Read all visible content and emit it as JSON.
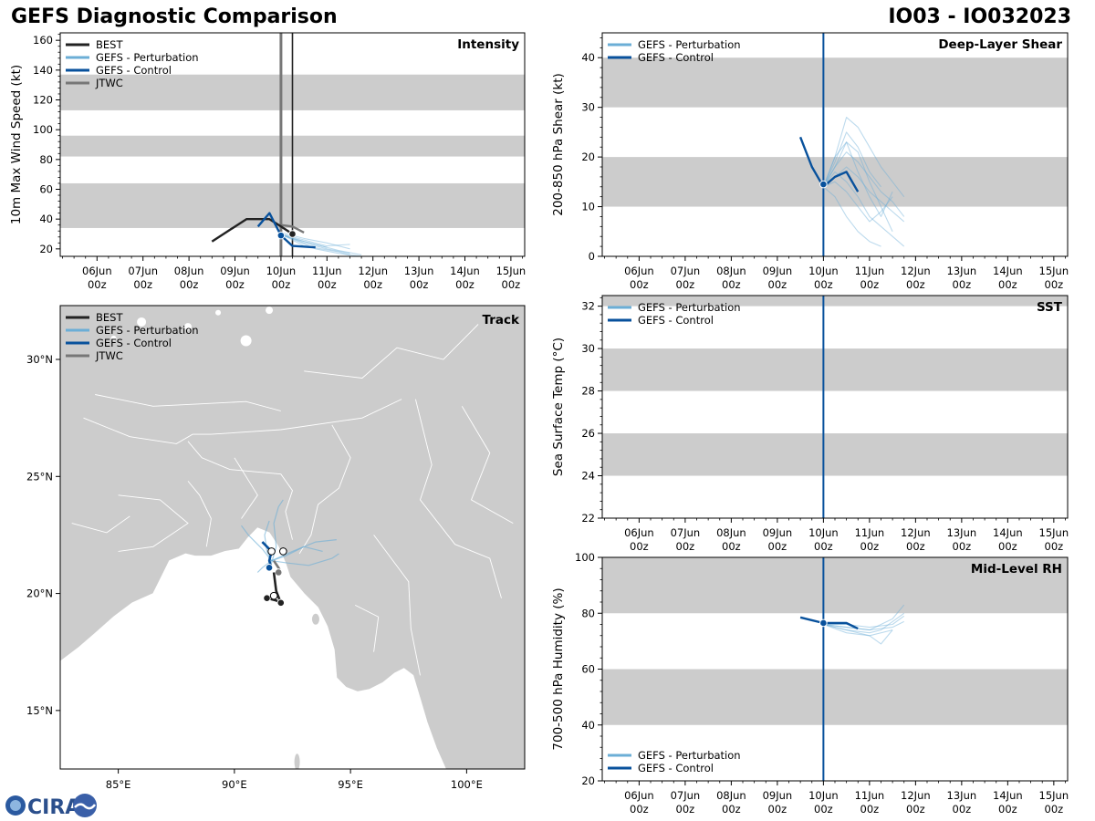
{
  "header": {
    "title": "GEFS Diagnostic Comparison",
    "storm_id": "IO03 - IO032023"
  },
  "logo": {
    "text": "CIRA"
  },
  "colors": {
    "best": "#222222",
    "perturbation": "#6baed6",
    "control": "#08519c",
    "jtwc": "#777777",
    "band": "#cccccc",
    "land": "#cccccc"
  },
  "time_ticks": [
    {
      "day": "06Jun",
      "hour": "00z"
    },
    {
      "day": "07Jun",
      "hour": "00z"
    },
    {
      "day": "08Jun",
      "hour": "00z"
    },
    {
      "day": "09Jun",
      "hour": "00z"
    },
    {
      "day": "10Jun",
      "hour": "00z"
    },
    {
      "day": "11Jun",
      "hour": "00z"
    },
    {
      "day": "12Jun",
      "hour": "00z"
    },
    {
      "day": "13Jun",
      "hour": "00z"
    },
    {
      "day": "14Jun",
      "hour": "00z"
    },
    {
      "day": "15Jun",
      "hour": "00z"
    }
  ],
  "chart_data": [
    {
      "id": "intensity",
      "type": "line",
      "title": "Intensity",
      "ylabel": "10m Max Wind Speed (kt)",
      "xlim_days": [
        5.2,
        15.3
      ],
      "ylim": [
        15,
        165
      ],
      "yticks": [
        20,
        40,
        60,
        80,
        100,
        120,
        140,
        160
      ],
      "bands": [
        [
          34,
          64
        ],
        [
          82,
          96
        ],
        [
          113,
          137
        ]
      ],
      "legend": [
        "BEST",
        "GEFS - Perturbation",
        "GEFS - Control",
        "JTWC"
      ],
      "vlines": [
        {
          "x": 10.0,
          "color": "#777777",
          "width": 3
        },
        {
          "x": 10.25,
          "color": "#222222",
          "width": 1.6
        }
      ],
      "series": [
        {
          "name": "BEST",
          "x": [
            8.5,
            9.25,
            9.75,
            10.0,
            10.25
          ],
          "y": [
            25,
            40,
            40,
            35,
            30
          ],
          "markers": [
            {
              "x": 10.25,
              "y": 30
            }
          ]
        },
        {
          "name": "GEFS - Control",
          "x": [
            9.5,
            9.75,
            10.0,
            10.25,
            10.75
          ],
          "y": [
            35,
            44,
            29,
            22,
            21
          ],
          "markers": [
            {
              "x": 10.0,
              "y": 29
            }
          ]
        },
        {
          "name": "JTWC",
          "x": [
            10.0,
            10.25,
            10.5
          ],
          "y": [
            36,
            35,
            31
          ]
        },
        {
          "name": "GEFS - Perturbation",
          "x": [
            10.0,
            10.5,
            11.0,
            11.5
          ],
          "y": [
            30,
            24,
            20,
            17
          ]
        },
        {
          "name": "GEFS - Perturbation",
          "x": [
            10.0,
            10.5,
            11.0,
            11.5
          ],
          "y": [
            30,
            26,
            22,
            23
          ]
        },
        {
          "name": "GEFS - Perturbation",
          "x": [
            10.0,
            10.75,
            11.25,
            11.75
          ],
          "y": [
            30,
            20,
            17,
            15
          ]
        },
        {
          "name": "GEFS - Perturbation",
          "x": [
            10.0,
            10.5,
            11.25,
            11.5
          ],
          "y": [
            30,
            22,
            18,
            16
          ]
        },
        {
          "name": "GEFS - Perturbation",
          "x": [
            10.0,
            10.5,
            11.0,
            11.5
          ],
          "y": [
            31,
            27,
            24,
            20
          ]
        },
        {
          "name": "GEFS - Perturbation",
          "x": [
            10.0,
            10.75,
            11.25,
            11.75
          ],
          "y": [
            29,
            23,
            19,
            16
          ]
        },
        {
          "name": "GEFS - Perturbation",
          "x": [
            10.0,
            10.5,
            11.0
          ],
          "y": [
            30,
            25,
            21
          ]
        }
      ]
    },
    {
      "id": "shear",
      "type": "line",
      "title": "Deep-Layer Shear",
      "ylabel": "200-850 hPa Shear (kt)",
      "xlim_days": [
        5.2,
        15.3
      ],
      "ylim": [
        0,
        45
      ],
      "yticks": [
        0,
        10,
        20,
        30,
        40
      ],
      "bands": [
        [
          10,
          20
        ],
        [
          30,
          40
        ]
      ],
      "legend": [
        "GEFS - Perturbation",
        "GEFS - Control"
      ],
      "vlines": [
        {
          "x": 10.0,
          "color": "#08519c",
          "width": 2
        }
      ],
      "series": [
        {
          "name": "GEFS - Perturbation",
          "x": [
            10.0,
            10.25,
            10.5,
            10.75,
            11.0,
            11.25,
            11.5,
            11.75
          ],
          "y": [
            14,
            20,
            28,
            26,
            22,
            18,
            15,
            12
          ]
        },
        {
          "name": "GEFS - Perturbation",
          "x": [
            10.0,
            10.25,
            10.5,
            10.75,
            11.0,
            11.25,
            11.5
          ],
          "y": [
            14,
            18,
            23,
            21,
            15,
            10,
            5
          ]
        },
        {
          "name": "GEFS - Perturbation",
          "x": [
            10.0,
            10.25,
            10.5,
            10.75,
            11.0,
            11.25,
            11.5,
            11.75
          ],
          "y": [
            14,
            17,
            15,
            12,
            8,
            6,
            4,
            2
          ]
        },
        {
          "name": "GEFS - Perturbation",
          "x": [
            10.0,
            10.25,
            10.5,
            10.75,
            11.0,
            11.25,
            11.5,
            11.75
          ],
          "y": [
            14,
            18,
            21,
            19,
            16,
            13,
            11,
            8
          ]
        },
        {
          "name": "GEFS - Perturbation",
          "x": [
            10.0,
            10.25,
            10.5,
            10.75,
            11.0,
            11.25,
            11.5
          ],
          "y": [
            14,
            15,
            13,
            10,
            7,
            9,
            12
          ]
        },
        {
          "name": "GEFS - Perturbation",
          "x": [
            10.0,
            10.25,
            10.5,
            10.75,
            11.0,
            11.25
          ],
          "y": [
            14,
            19,
            25,
            22,
            17,
            14
          ]
        },
        {
          "name": "GEFS - Perturbation",
          "x": [
            10.0,
            10.25,
            10.5,
            10.75,
            11.0,
            11.25,
            11.5,
            11.75
          ],
          "y": [
            14,
            16,
            18,
            16,
            13,
            11,
            9,
            7
          ]
        },
        {
          "name": "GEFS - Perturbation",
          "x": [
            10.0,
            10.25,
            10.5,
            10.75,
            11.0,
            11.25
          ],
          "y": [
            14,
            12,
            8,
            5,
            3,
            2
          ]
        },
        {
          "name": "GEFS - Perturbation",
          "x": [
            10.0,
            10.25,
            10.5,
            10.75,
            11.0,
            11.25,
            11.5
          ],
          "y": [
            14,
            20,
            23,
            17,
            12,
            8,
            13
          ]
        },
        {
          "name": "GEFS - Control",
          "x": [
            9.5,
            9.75,
            10.0,
            10.25,
            10.5,
            10.75
          ],
          "y": [
            24,
            18,
            14,
            16,
            17,
            13
          ],
          "markers": [
            {
              "x": 10.0,
              "y": 14.5
            }
          ]
        }
      ]
    },
    {
      "id": "sst",
      "type": "line",
      "title": "SST",
      "ylabel": "Sea Surface Temp (°C)",
      "xlim_days": [
        5.2,
        15.3
      ],
      "ylim": [
        22,
        32.5
      ],
      "yticks": [
        22,
        24,
        26,
        28,
        30,
        32
      ],
      "bands": [
        [
          24,
          26
        ],
        [
          28,
          30
        ],
        [
          32,
          32.5
        ]
      ],
      "legend": [
        "GEFS - Perturbation",
        "GEFS - Control"
      ],
      "vlines": [
        {
          "x": 10.0,
          "color": "#08519c",
          "width": 2
        }
      ],
      "series": []
    },
    {
      "id": "rh",
      "type": "line",
      "title": "Mid-Level RH",
      "ylabel": "700-500 hPa Humidity (%)",
      "xlim_days": [
        5.2,
        15.3
      ],
      "ylim": [
        20,
        100
      ],
      "yticks": [
        20,
        40,
        60,
        80,
        100
      ],
      "bands": [
        [
          40,
          60
        ],
        [
          80,
          100
        ]
      ],
      "legend": [
        "GEFS - Perturbation",
        "GEFS - Control"
      ],
      "vlines": [
        {
          "x": 10.0,
          "color": "#08519c",
          "width": 2
        }
      ],
      "series": [
        {
          "name": "GEFS - Perturbation",
          "x": [
            10.0,
            10.5,
            11.0,
            11.5,
            11.75
          ],
          "y": [
            76,
            75,
            74,
            78,
            83
          ]
        },
        {
          "name": "GEFS - Perturbation",
          "x": [
            10.0,
            10.5,
            11.0,
            11.25,
            11.75
          ],
          "y": [
            76,
            74,
            73,
            74,
            80
          ]
        },
        {
          "name": "GEFS - Perturbation",
          "x": [
            10.0,
            10.5,
            11.0,
            11.25,
            11.5
          ],
          "y": [
            76,
            73,
            72,
            69,
            74
          ]
        },
        {
          "name": "GEFS - Perturbation",
          "x": [
            10.0,
            10.5,
            11.0,
            11.5,
            11.75
          ],
          "y": [
            76,
            76,
            75,
            76,
            79
          ]
        },
        {
          "name": "GEFS - Perturbation",
          "x": [
            10.0,
            10.5,
            11.0,
            11.5
          ],
          "y": [
            76,
            74,
            72,
            74
          ]
        },
        {
          "name": "GEFS - Perturbation",
          "x": [
            10.0,
            10.5,
            11.0,
            11.5,
            11.75
          ],
          "y": [
            76,
            75,
            74,
            75,
            77
          ]
        },
        {
          "name": "GEFS - Control",
          "x": [
            9.5,
            10.0,
            10.25,
            10.5,
            10.75
          ],
          "y": [
            78.5,
            76.5,
            76.5,
            76.5,
            74.5
          ],
          "markers": [
            {
              "x": 10.0,
              "y": 76.5
            }
          ]
        }
      ]
    },
    {
      "id": "track",
      "type": "map",
      "title": "Track",
      "lon_range": [
        82.5,
        102.5
      ],
      "lat_range": [
        12.5,
        32.3
      ],
      "lon_ticks": [
        85,
        90,
        95,
        100
      ],
      "lat_ticks": [
        15,
        20,
        25,
        30
      ],
      "lon_labels": [
        "85°E",
        "90°E",
        "95°E",
        "100°E"
      ],
      "lat_labels": [
        "15°N",
        "20°N",
        "25°N",
        "30°N"
      ],
      "legend": [
        "BEST",
        "GEFS - Perturbation",
        "GEFS - Control",
        "JTWC"
      ],
      "tracks": [
        {
          "name": "BEST",
          "lon": [
            91.4,
            91.8,
            92.0,
            91.8,
            91.7
          ],
          "lat": [
            19.8,
            19.7,
            19.6,
            20.1,
            20.9
          ],
          "markers": [
            {
              "lon": 91.4,
              "lat": 19.8,
              "style": "filled"
            },
            {
              "lon": 92.0,
              "lat": 19.6,
              "style": "filled"
            },
            {
              "lon": 91.7,
              "lat": 19.9,
              "style": "open"
            }
          ]
        },
        {
          "name": "JTWC",
          "lon": [
            91.7,
            91.9,
            92.0
          ],
          "lat": [
            21.4,
            21.1,
            20.9
          ],
          "markers": [
            {
              "lon": 91.9,
              "lat": 20.9,
              "style": "filled"
            }
          ]
        },
        {
          "name": "GEFS - Control",
          "lon": [
            91.2,
            91.6,
            91.5,
            91.6
          ],
          "lat": [
            22.2,
            21.8,
            21.4,
            21.1
          ],
          "markers": [
            {
              "lon": 91.5,
              "lat": 21.1,
              "style": "filled"
            },
            {
              "lon": 91.6,
              "lat": 21.8,
              "style": "open"
            },
            {
              "lon": 92.1,
              "lat": 21.8,
              "style": "open"
            }
          ]
        },
        {
          "name": "GEFS - Perturbation",
          "lon": [
            91.6,
            91.8,
            91.7,
            91.9,
            92.1
          ],
          "lat": [
            21.3,
            22.0,
            23.0,
            23.7,
            24.0
          ]
        },
        {
          "name": "GEFS - Perturbation",
          "lon": [
            91.6,
            91.2,
            90.6,
            90.3
          ],
          "lat": [
            21.4,
            21.9,
            22.5,
            22.9
          ]
        },
        {
          "name": "GEFS - Perturbation",
          "lon": [
            91.6,
            92.5,
            93.5,
            94.4
          ],
          "lat": [
            21.4,
            21.8,
            22.2,
            22.3
          ]
        },
        {
          "name": "GEFS - Perturbation",
          "lon": [
            91.6,
            92.3,
            93.2,
            94.2,
            94.5
          ],
          "lat": [
            21.4,
            21.3,
            21.2,
            21.5,
            21.7
          ]
        },
        {
          "name": "GEFS - Perturbation",
          "lon": [
            91.6,
            91.2,
            91.0
          ],
          "lat": [
            21.4,
            21.1,
            20.9
          ]
        },
        {
          "name": "GEFS - Perturbation",
          "lon": [
            91.6,
            92.2,
            93.0,
            93.8
          ],
          "lat": [
            21.4,
            21.6,
            22.0,
            21.8
          ]
        },
        {
          "name": "GEFS - Perturbation",
          "lon": [
            91.6,
            91.4,
            91.3,
            91.5
          ],
          "lat": [
            21.4,
            21.8,
            22.5,
            23.1
          ]
        }
      ]
    }
  ]
}
